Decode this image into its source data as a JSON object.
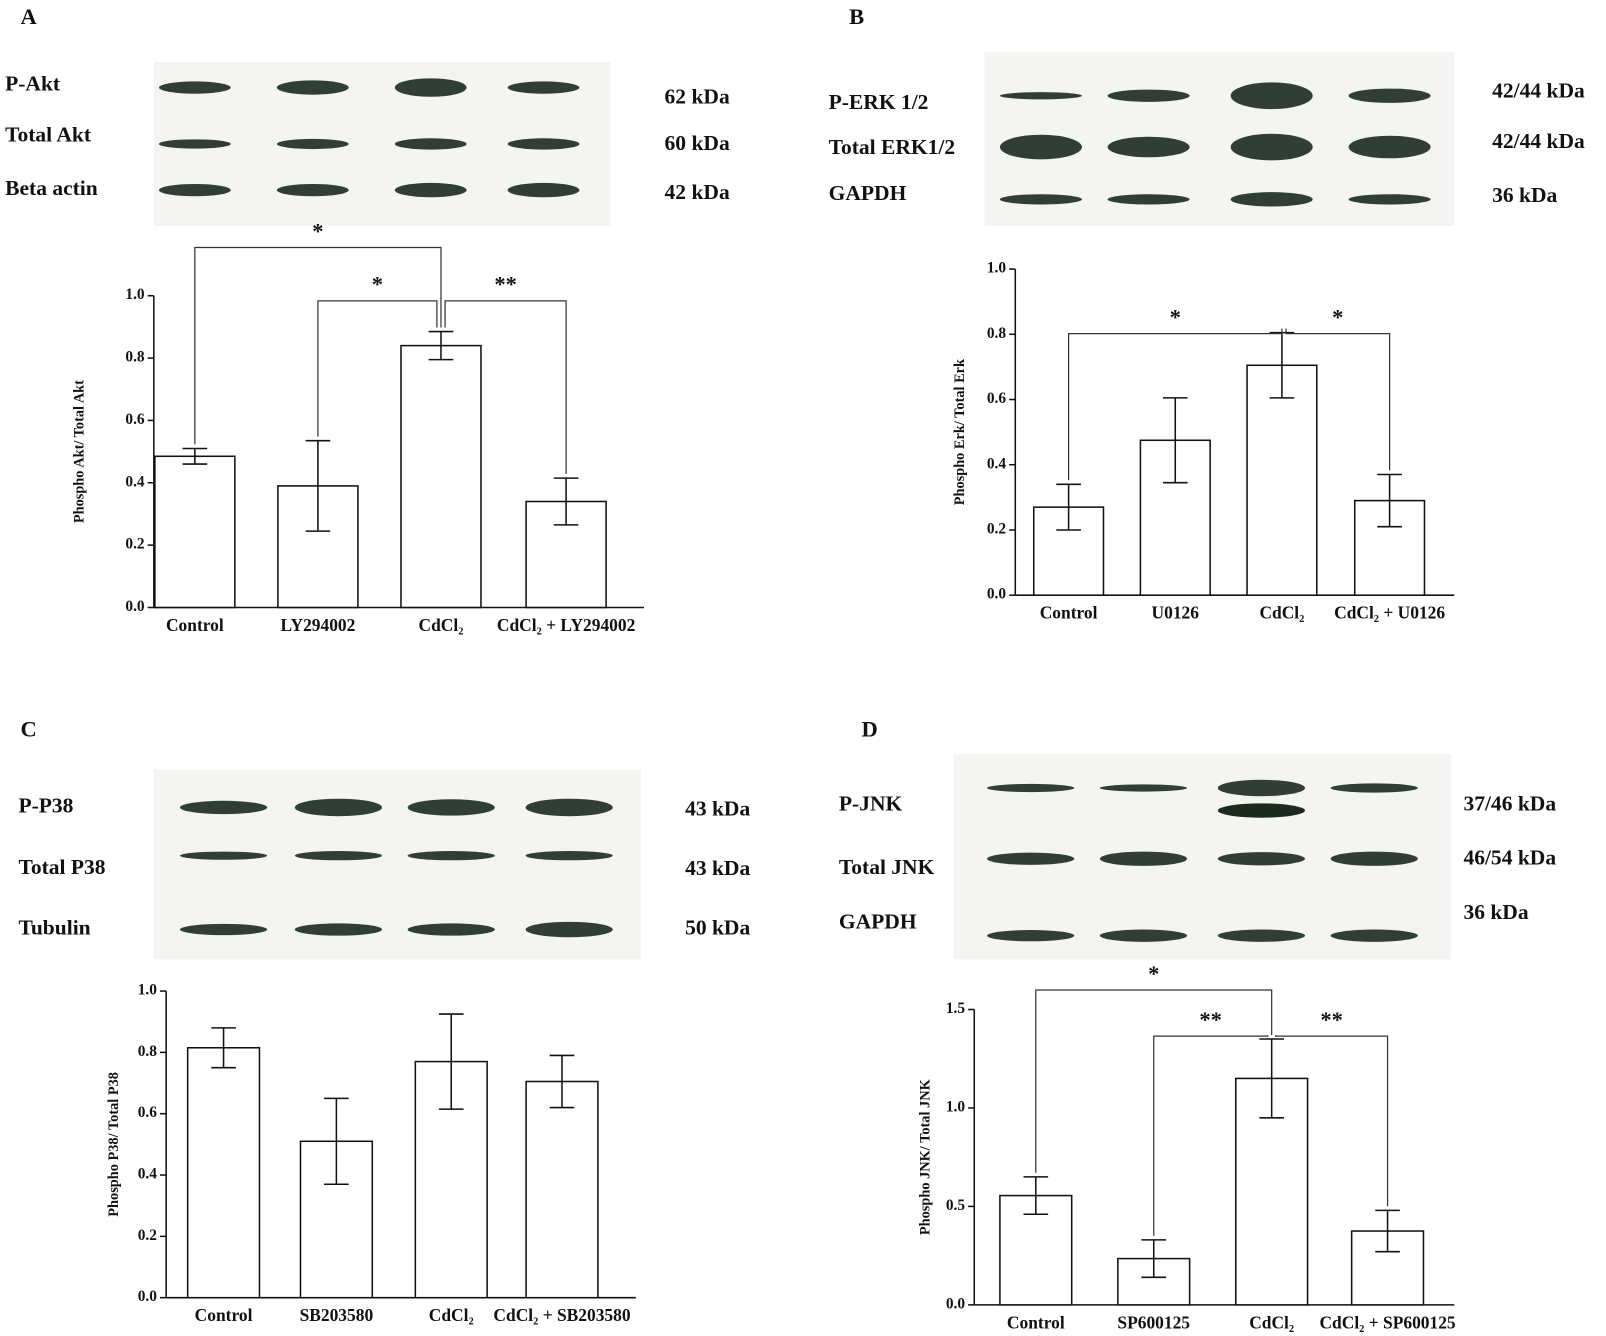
{
  "chart_data": [
    {
      "type": "bar",
      "panel": "A",
      "blots": [
        {
          "label": "P-Akt",
          "size": "62 kDa"
        },
        {
          "label": "Total Akt",
          "size": "60 kDa"
        },
        {
          "label": "Beta actin",
          "size": "42 kDa"
        }
      ],
      "ylabel": "Phospho Akt/ Total Akt",
      "categories": [
        "Control",
        "LY294002",
        "CdCl₂",
        "CdCl₂ + LY294002"
      ],
      "values": [
        0.485,
        0.39,
        0.84,
        0.34
      ],
      "errors": [
        0.025,
        0.145,
        0.045,
        0.075
      ],
      "color": "#ffffff",
      "ylim": [
        0,
        1
      ],
      "yticks": [
        {
          "value": 0,
          "label": "0.0"
        },
        0.2,
        0.4,
        0.6,
        0.8,
        {
          "value": 1,
          "label": "1.0"
        }
      ],
      "annotations": [
        "*",
        "*",
        "**"
      ]
    },
    {
      "type": "bar",
      "panel": "B",
      "blots": [
        {
          "label": "P-ERK 1/2",
          "size": "42/44 kDa"
        },
        {
          "label": "Total ERK1/2",
          "size": "42/44 kDa"
        },
        {
          "label": "GAPDH",
          "size": "36 kDa"
        }
      ],
      "ylabel": "Phospho Erk/ Total Erk",
      "categories": [
        "Control",
        "U0126",
        "CdCl₂",
        "CdCl₂ + U0126"
      ],
      "values": [
        0.27,
        0.475,
        0.705,
        0.29
      ],
      "errors": [
        0.07,
        0.13,
        0.1,
        0.08
      ],
      "color": "#ffffff",
      "ylim": [
        0,
        1
      ],
      "yticks": [
        {
          "value": 0,
          "label": "0.0"
        },
        0.2,
        0.4,
        0.6,
        0.8,
        {
          "value": 1,
          "label": "1.0"
        }
      ],
      "annotations": [
        "*",
        "*"
      ]
    },
    {
      "type": "bar",
      "panel": "C",
      "blots": [
        {
          "label": "P-P38",
          "size": "43 kDa"
        },
        {
          "label": "Total P38",
          "size": "43 kDa"
        },
        {
          "label": "Tubulin",
          "size": "50 kDa"
        }
      ],
      "ylabel": "Phospho P38/ Total P38",
      "categories": [
        "Control",
        "SB203580",
        "CdCl₂",
        "CdCl₂ + SB203580"
      ],
      "values": [
        0.815,
        0.51,
        0.77,
        0.705
      ],
      "errors": [
        0.065,
        0.14,
        0.155,
        0.085
      ],
      "color": "#ffffff",
      "ylim": [
        0,
        1
      ],
      "yticks": [
        {
          "value": 0,
          "label": "0.0"
        },
        0.2,
        0.4,
        0.6,
        0.8,
        {
          "value": 1,
          "label": "1.0"
        }
      ]
    },
    {
      "type": "bar",
      "panel": "D",
      "blots": [
        {
          "label": "P-JNK",
          "size": "37/46 kDa"
        },
        {
          "label": "Total JNK",
          "size": "46/54  kDa"
        },
        {
          "label": "GAPDH",
          "size": "36 kDa"
        }
      ],
      "ylabel": "Phospho JNK/ Total JNK",
      "categories": [
        "Control",
        "SP600125",
        "CdCl₂",
        "CdCl₂ + SP600125"
      ],
      "values": [
        0.555,
        0.235,
        1.15,
        0.375
      ],
      "errors": [
        0.095,
        0.095,
        0.2,
        0.105
      ],
      "color": "#ffffff",
      "ylim": [
        0,
        1.5
      ],
      "yticks": [
        {
          "value": 0,
          "label": "0.0"
        },
        0.5,
        {
          "value": 1,
          "label": "1.0"
        },
        1.5
      ],
      "annotations": [
        "*",
        "**",
        "**"
      ]
    }
  ]
}
